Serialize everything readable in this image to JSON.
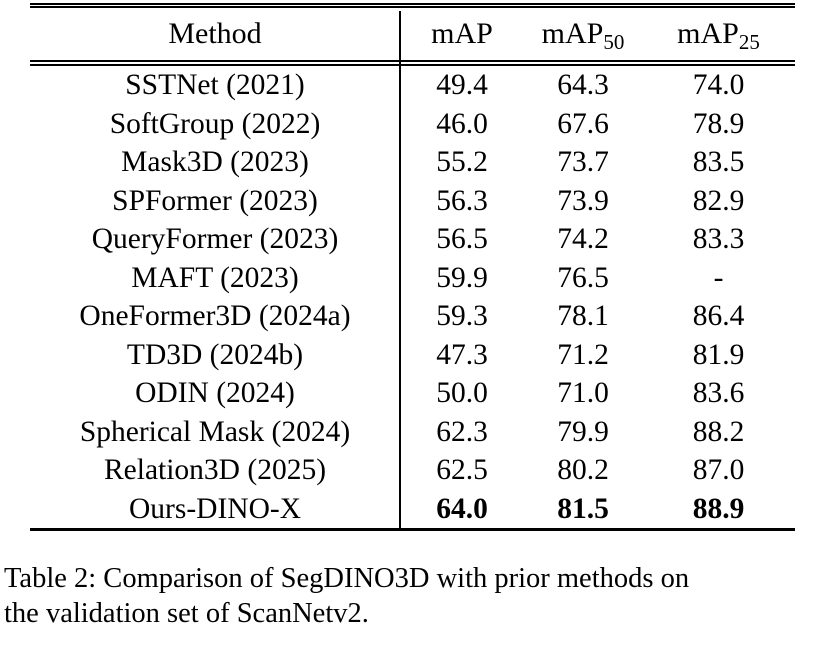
{
  "colors": {
    "text": "#000000",
    "background": "#ffffff",
    "rule": "#000000"
  },
  "table": {
    "header": {
      "method": "Method",
      "map": "mAP",
      "map50": {
        "base": "mAP",
        "sub": "50"
      },
      "map25": {
        "base": "mAP",
        "sub": "25"
      }
    },
    "rows": [
      {
        "method": "SSTNet (2021)",
        "map": "49.4",
        "map50": "64.3",
        "map25": "74.0",
        "bold": false
      },
      {
        "method": "SoftGroup (2022)",
        "map": "46.0",
        "map50": "67.6",
        "map25": "78.9",
        "bold": false
      },
      {
        "method": "Mask3D (2023)",
        "map": "55.2",
        "map50": "73.7",
        "map25": "83.5",
        "bold": false
      },
      {
        "method": "SPFormer (2023)",
        "map": "56.3",
        "map50": "73.9",
        "map25": "82.9",
        "bold": false
      },
      {
        "method": "QueryFormer (2023)",
        "map": "56.5",
        "map50": "74.2",
        "map25": "83.3",
        "bold": false
      },
      {
        "method": "MAFT (2023)",
        "map": "59.9",
        "map50": "76.5",
        "map25": "-",
        "bold": false
      },
      {
        "method": "OneFormer3D (2024a)",
        "map": "59.3",
        "map50": "78.1",
        "map25": "86.4",
        "bold": false
      },
      {
        "method": "TD3D (2024b)",
        "map": "47.3",
        "map50": "71.2",
        "map25": "81.9",
        "bold": false
      },
      {
        "method": "ODIN (2024)",
        "map": "50.0",
        "map50": "71.0",
        "map25": "83.6",
        "bold": false
      },
      {
        "method": "Spherical Mask (2024)",
        "map": "62.3",
        "map50": "79.9",
        "map25": "88.2",
        "bold": false
      },
      {
        "method": "Relation3D (2025)",
        "map": "62.5",
        "map50": "80.2",
        "map25": "87.0",
        "bold": false
      },
      {
        "method": "Ours-DINO-X",
        "map": "64.0",
        "map50": "81.5",
        "map25": "88.9",
        "bold": true
      }
    ]
  },
  "caption": {
    "line1": "Table 2: Comparison of SegDINO3D with prior methods on",
    "line2": "the validation set of ScanNetv2."
  }
}
